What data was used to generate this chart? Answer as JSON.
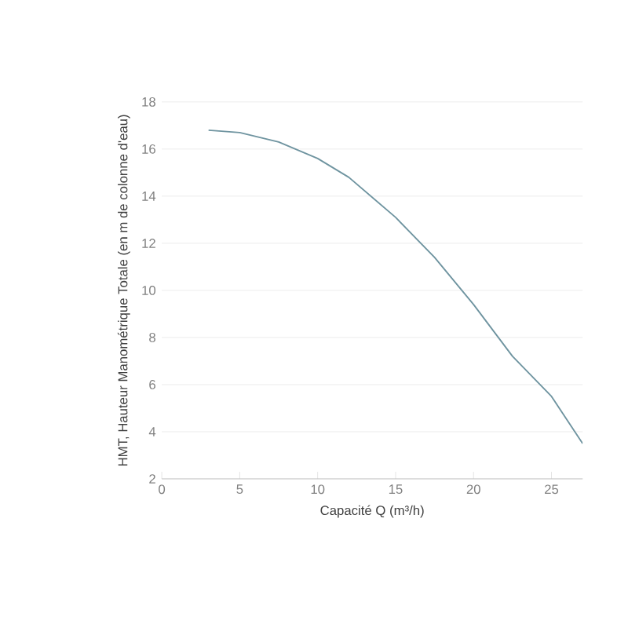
{
  "chart_data": {
    "type": "line",
    "xlabel": "Capacité Q (m³/h)",
    "ylabel": "HMT, Hauteur Manométrique Totale (en m de colonne d'eau)",
    "x": [
      3,
      5,
      7.5,
      10,
      12,
      15,
      17.5,
      20,
      22.5,
      25,
      27
    ],
    "series": [
      {
        "color": "#6f94a0",
        "values": [
          16.8,
          16.7,
          16.3,
          15.6,
          14.8,
          13.1,
          11.4,
          9.4,
          7.2,
          5.5,
          3.5
        ]
      }
    ],
    "xlim": [
      0,
      27
    ],
    "ylim": [
      2,
      18
    ],
    "xticks": [
      0,
      5,
      10,
      15,
      20,
      25
    ],
    "yticks": [
      2,
      4,
      6,
      8,
      10,
      12,
      14,
      16,
      18
    ],
    "grid": "y",
    "marker": "none",
    "line_style": "solid"
  }
}
